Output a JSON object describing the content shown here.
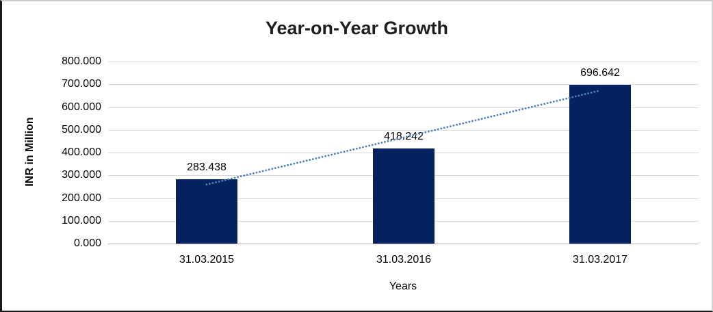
{
  "chart_data": {
    "type": "bar",
    "title": "Year-on-Year Growth",
    "xlabel": "Years",
    "ylabel": "INR in Million",
    "categories": [
      "31.03.2015",
      "31.03.2016",
      "31.03.2017"
    ],
    "values": [
      283.438,
      418.242,
      696.642
    ],
    "value_labels": [
      "283.438",
      "418.242",
      "696.642"
    ],
    "ylim": [
      0,
      800
    ],
    "ytick_interval": 100,
    "ytick_labels": [
      "0.000",
      "100.000",
      "200.000",
      "300.000",
      "400.000",
      "500.000",
      "600.000",
      "700.000",
      "800.000"
    ],
    "grid": true,
    "legend": "none",
    "trendline": {
      "type": "linear",
      "style": "dotted"
    },
    "colors": {
      "bar": "#04225f",
      "trendline": "#4f81bd",
      "gridline": "#d9d9d9",
      "zero_line": "#b3b3b3",
      "title_text": "#1f1f1f",
      "label_text": "#000000"
    }
  }
}
